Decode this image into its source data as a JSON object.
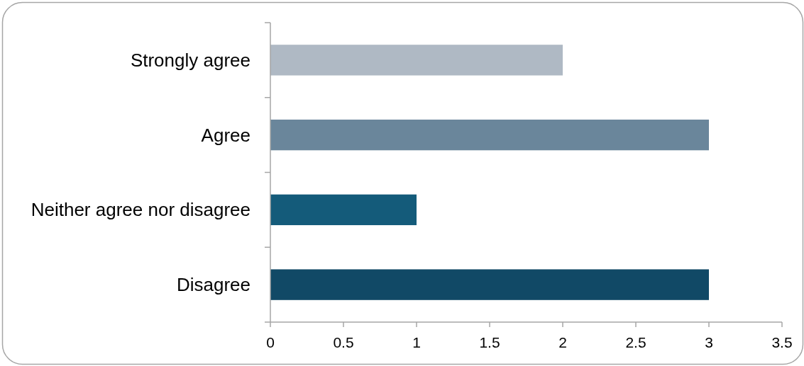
{
  "chart_data": {
    "type": "bar",
    "orientation": "horizontal",
    "categories": [
      "Strongly agree",
      "Agree",
      "Neither agree nor disagree",
      "Disagree"
    ],
    "values": [
      2,
      3,
      1,
      3
    ],
    "colors": [
      "#afb9c4",
      "#6a869b",
      "#145b7a",
      "#114966"
    ],
    "xlim": [
      0,
      3.5
    ],
    "xticks": [
      0,
      0.5,
      1,
      1.5,
      2,
      2.5,
      3,
      3.5
    ]
  }
}
